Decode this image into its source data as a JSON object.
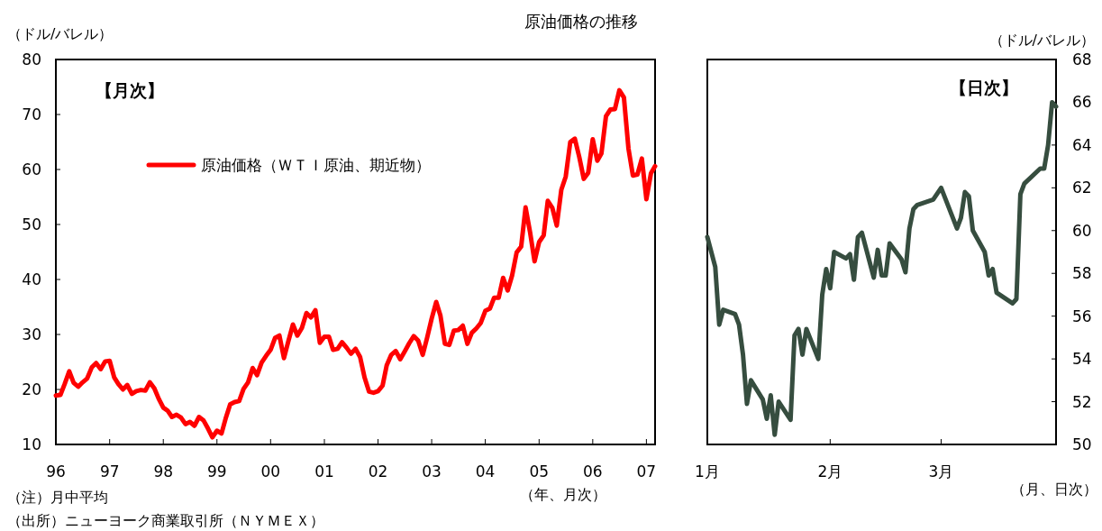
{
  "chart_data": [
    {
      "type": "line",
      "title": "原油価格の推移",
      "subtitle": "【月次】",
      "ylabel": "（ドル/バレル）",
      "xlabel": "（年、月次）",
      "annotations": [
        "（注）月中平均",
        "（出所）ニューヨーク商業取引所（ＮＹＭＥＸ）"
      ],
      "x": [
        "1996-01",
        "1996-02",
        "1996-03",
        "1996-04",
        "1996-05",
        "1996-06",
        "1996-07",
        "1996-08",
        "1996-09",
        "1996-10",
        "1996-11",
        "1996-12",
        "1997-01",
        "1997-02",
        "1997-03",
        "1997-04",
        "1997-05",
        "1997-06",
        "1997-07",
        "1997-08",
        "1997-09",
        "1997-10",
        "1997-11",
        "1997-12",
        "1998-01",
        "1998-02",
        "1998-03",
        "1998-04",
        "1998-05",
        "1998-06",
        "1998-07",
        "1998-08",
        "1998-09",
        "1998-10",
        "1998-11",
        "1998-12",
        "1999-01",
        "1999-02",
        "1999-03",
        "1999-04",
        "1999-05",
        "1999-06",
        "1999-07",
        "1999-08",
        "1999-09",
        "1999-10",
        "1999-11",
        "1999-12",
        "2000-01",
        "2000-02",
        "2000-03",
        "2000-04",
        "2000-05",
        "2000-06",
        "2000-07",
        "2000-08",
        "2000-09",
        "2000-10",
        "2000-11",
        "2000-12",
        "2001-01",
        "2001-02",
        "2001-03",
        "2001-04",
        "2001-05",
        "2001-06",
        "2001-07",
        "2001-08",
        "2001-09",
        "2001-10",
        "2001-11",
        "2001-12",
        "2002-01",
        "2002-02",
        "2002-03",
        "2002-04",
        "2002-05",
        "2002-06",
        "2002-07",
        "2002-08",
        "2002-09",
        "2002-10",
        "2002-11",
        "2002-12",
        "2003-01",
        "2003-02",
        "2003-03",
        "2003-04",
        "2003-05",
        "2003-06",
        "2003-07",
        "2003-08",
        "2003-09",
        "2003-10",
        "2003-11",
        "2003-12",
        "2004-01",
        "2004-02",
        "2004-03",
        "2004-04",
        "2004-05",
        "2004-06",
        "2004-07",
        "2004-08",
        "2004-09",
        "2004-10",
        "2004-11",
        "2004-12",
        "2005-01",
        "2005-02",
        "2005-03",
        "2005-04",
        "2005-05",
        "2005-06",
        "2005-07",
        "2005-08",
        "2005-09",
        "2005-10",
        "2005-11",
        "2005-12",
        "2006-01",
        "2006-02",
        "2006-03",
        "2006-04",
        "2006-05",
        "2006-06",
        "2006-07",
        "2006-08",
        "2006-09",
        "2006-10",
        "2006-11",
        "2006-12",
        "2007-01",
        "2007-02",
        "2007-03"
      ],
      "series": [
        {
          "name": "原油価格（ＷＴＩ原油、期近物）",
          "color": "#ff0000",
          "values": [
            18.9,
            19,
            21,
            23.3,
            21.2,
            20.5,
            21.3,
            22,
            24,
            24.8,
            23.7,
            25.1,
            25.2,
            22.2,
            21,
            20,
            20.8,
            19.2,
            19.7,
            19.9,
            19.8,
            21.3,
            20.2,
            18.3,
            16.7,
            16.1,
            15,
            15.4,
            14.9,
            13.7,
            14.1,
            13.4,
            15,
            14.4,
            12.9,
            11.3,
            12.5,
            12,
            14.7,
            17.3,
            17.7,
            17.9,
            20.1,
            21.3,
            23.9,
            22.6,
            24.9,
            26.1,
            27.2,
            29.4,
            29.8,
            25.7,
            28.8,
            31.8,
            29.8,
            31.2,
            33.9,
            33.1,
            34.4,
            28.5,
            29.6,
            29.6,
            27.2,
            27.4,
            28.6,
            27.6,
            26.5,
            27.4,
            25.9,
            22.2,
            19.6,
            19.4,
            19.7,
            20.7,
            24.4,
            26.3,
            27,
            25.5,
            26.9,
            28.4,
            29.7,
            28.9,
            26.3,
            29.4,
            32.9,
            35.9,
            33.5,
            28.3,
            28.1,
            30.7,
            30.8,
            31.6,
            28.3,
            30.3,
            31.1,
            32.1,
            34.3,
            34.7,
            36.7,
            36.7,
            40.3,
            38,
            40.7,
            44.9,
            46,
            53.1,
            48.5,
            43.3,
            46.8,
            48,
            54.3,
            53,
            49.8,
            56.3,
            58.7,
            65,
            65.6,
            62.3,
            58.3,
            59.4,
            65.5,
            61.6,
            62.9,
            69.7,
            70.9,
            71,
            74.4,
            73.1,
            63.8,
            58.9,
            59.1,
            62,
            54.6,
            59.3,
            60.6
          ]
        }
      ],
      "xlim": [
        "1996-01",
        "2007-03"
      ],
      "xticks": [
        {
          "value": "1996-01",
          "label": "96"
        },
        {
          "value": "1997-01",
          "label": "97"
        },
        {
          "value": "1998-01",
          "label": "98"
        },
        {
          "value": "1999-01",
          "label": "99"
        },
        {
          "value": "2000-01",
          "label": "00"
        },
        {
          "value": "2001-01",
          "label": "01"
        },
        {
          "value": "2002-01",
          "label": "02"
        },
        {
          "value": "2003-01",
          "label": "03"
        },
        {
          "value": "2004-01",
          "label": "04"
        },
        {
          "value": "2005-01",
          "label": "05"
        },
        {
          "value": "2006-01",
          "label": "06"
        },
        {
          "value": "2007-01",
          "label": "07"
        }
      ],
      "ylim": [
        10,
        80
      ],
      "yticks": [
        10,
        20,
        30,
        40,
        50,
        60,
        70,
        80
      ],
      "legend": "top left"
    },
    {
      "type": "line",
      "title": "【日次】",
      "y2label": "（ドル/バレル）",
      "xlabel": "（月、日次）",
      "x": [
        "--01-01",
        "--01-03",
        "--01-04",
        "--01-05",
        "--01-08",
        "--01-09",
        "--01-10",
        "--01-11",
        "--01-12",
        "--01-15",
        "--01-16",
        "--01-17",
        "--01-18",
        "--01-19",
        "--01-22",
        "--01-23",
        "--01-24",
        "--01-25",
        "--01-26",
        "--01-29",
        "--01-30",
        "--01-31",
        "--02-01",
        "--02-02",
        "--02-05",
        "--02-06",
        "--02-07",
        "--02-08",
        "--02-09",
        "--02-12",
        "--02-13",
        "--02-14",
        "--02-15",
        "--02-16",
        "--02-19",
        "--02-20",
        "--02-21",
        "--02-22",
        "--02-23",
        "--02-27",
        "--03-01",
        "--03-05",
        "--03-06",
        "--03-07",
        "--03-08",
        "--03-09",
        "--03-12",
        "--03-13",
        "--03-14",
        "--03-15",
        "--03-19",
        "--03-20",
        "--03-21",
        "--03-22",
        "--03-26",
        "--03-27",
        "--03-28",
        "--03-29",
        "--03-30"
      ],
      "series": [
        {
          "color": "#364d3f",
          "axis": "y2",
          "values": [
            59.7,
            58.3,
            55.6,
            56.3,
            56.1,
            55.6,
            54.2,
            51.9,
            53.0,
            52.1,
            51.2,
            52.3,
            50.45,
            52.0,
            51.15,
            55.1,
            55.4,
            54.2,
            55.4,
            54.0,
            57.0,
            58.2,
            57.3,
            59.0,
            58.7,
            58.9,
            57.7,
            59.7,
            59.9,
            57.8,
            59.1,
            57.9,
            57.9,
            59.4,
            58.65,
            58.05,
            60.1,
            61.0,
            61.2,
            61.45,
            62.0,
            60.1,
            60.6,
            61.8,
            61.6,
            60.0,
            59.0,
            57.9,
            58.2,
            57.1,
            56.6,
            56.8,
            61.7,
            62.2,
            62.9,
            62.9,
            64.0,
            66.0,
            65.8
          ]
        }
      ],
      "xlim": [
        "--01-01",
        "--03-30"
      ],
      "xticks": [
        {
          "value": "--01-01",
          "label": "1月"
        },
        {
          "value": "--02-01",
          "label": "2月"
        },
        {
          "value": "--03-01",
          "label": "3月"
        }
      ],
      "y2lim": [
        50,
        68
      ],
      "y2ticks": [
        50,
        52,
        54,
        56,
        58,
        60,
        62,
        64,
        66,
        68
      ]
    }
  ]
}
